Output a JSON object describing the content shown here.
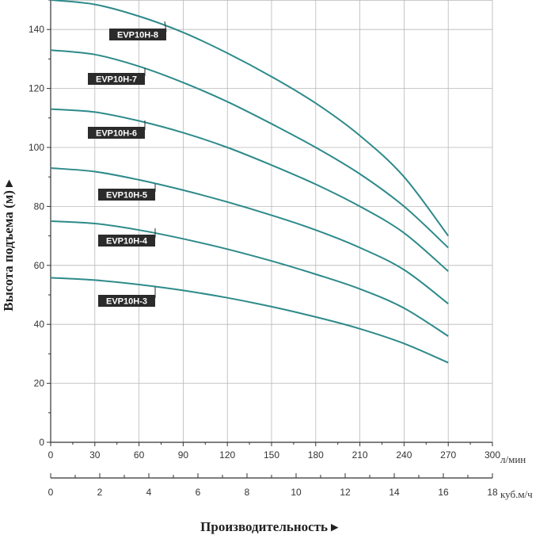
{
  "chart_data": {
    "type": "line",
    "ylabel": "Высота подъема (м) ▸",
    "xlabel": "Производительность ▸",
    "x_unit": "л/мин",
    "x2_unit": "куб.м/ч",
    "xlim": [
      0,
      300
    ],
    "x2lim": [
      0,
      18
    ],
    "ylim": [
      0,
      150
    ],
    "x_ticks": [
      0,
      30,
      60,
      90,
      120,
      150,
      180,
      210,
      240,
      270,
      300
    ],
    "x2_ticks": [
      0,
      2,
      4,
      6,
      8,
      10,
      12,
      14,
      16,
      18
    ],
    "y_ticks": [
      0,
      20,
      40,
      60,
      80,
      100,
      120,
      140
    ],
    "grid": true,
    "curve_color": "#2e8a8a",
    "x": [
      0,
      30,
      60,
      90,
      120,
      150,
      180,
      210,
      240,
      270
    ],
    "series": [
      {
        "name": "EVP10H-8",
        "values": [
          150,
          148.5,
          144.5,
          139,
          132,
          124,
          115,
          104,
          90,
          70
        ]
      },
      {
        "name": "EVP10H-7",
        "values": [
          133,
          131.5,
          127.5,
          122,
          115.5,
          108,
          100,
          91,
          80,
          66
        ]
      },
      {
        "name": "EVP10H-6",
        "values": [
          113,
          112,
          109,
          105,
          100,
          94,
          87.5,
          80,
          71,
          58
        ]
      },
      {
        "name": "EVP10H-5",
        "values": [
          93,
          91.8,
          89,
          85.5,
          81.5,
          77,
          72,
          66,
          58.5,
          47
        ]
      },
      {
        "name": "EVP10H-4",
        "values": [
          75,
          74.2,
          72,
          69,
          65.5,
          61.5,
          57,
          52,
          45.5,
          36
        ]
      },
      {
        "name": "EVP10H-3",
        "values": [
          55.8,
          55,
          53.5,
          51.5,
          49,
          46,
          42.5,
          38.5,
          33.5,
          27
        ]
      }
    ]
  }
}
